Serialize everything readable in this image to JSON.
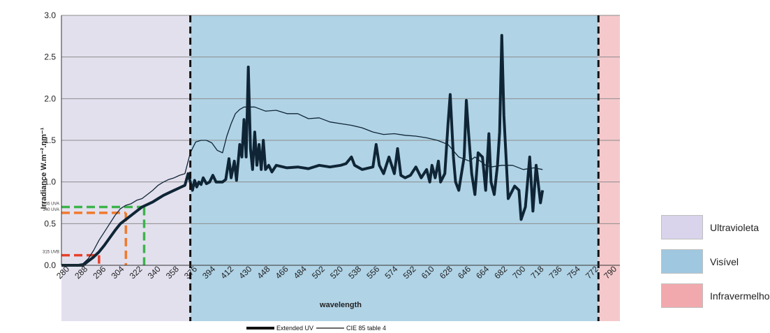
{
  "chart_data": {
    "type": "line",
    "title": "",
    "xlabel": "wavelength",
    "ylabel": "Irradiance W.m⁻².nm⁻¹",
    "ylim": [
      0,
      3
    ],
    "y_ticks": [
      "0.0",
      "0.5",
      "1.0",
      "1.5",
      "2.0",
      "2.5",
      "3.0"
    ],
    "x_tick_labels": [
      "280",
      "288",
      "296",
      "304",
      "322",
      "340",
      "358",
      "376",
      "394",
      "412",
      "430",
      "448",
      "466",
      "484",
      "502",
      "520",
      "538",
      "556",
      "574",
      "592",
      "610",
      "628",
      "646",
      "664",
      "682",
      "700",
      "718",
      "736",
      "754",
      "772",
      "790"
    ],
    "x_range": [
      280,
      800
    ],
    "grid": true,
    "regions": [
      {
        "name": "Ultravioleta",
        "from": 280,
        "to": 400,
        "color": "#e3e0ee"
      },
      {
        "name": "Visível",
        "from": 400,
        "to": 780,
        "color": "#b0d3e6"
      },
      {
        "name": "Infravermelho",
        "from": 780,
        "to": 800,
        "color": "#f5c9cc"
      }
    ],
    "dividers": [
      400,
      780
    ],
    "markers": [
      {
        "label": "315 UVB",
        "y": 0.12,
        "x_end": 315,
        "color": "#e8402a"
      },
      {
        "label": "340 UVA",
        "y": 0.63,
        "x_end": 340,
        "color": "#f07a2c"
      },
      {
        "label": "355 UVA",
        "y": 0.7,
        "x_end": 357,
        "color": "#3cb44a"
      }
    ],
    "series": [
      {
        "name": "Extended UV",
        "color": "#0f2535",
        "points": [
          [
            280,
            0
          ],
          [
            300,
            0
          ],
          [
            305,
            0.05
          ],
          [
            310,
            0.1
          ],
          [
            315,
            0.16
          ],
          [
            320,
            0.24
          ],
          [
            325,
            0.33
          ],
          [
            330,
            0.42
          ],
          [
            335,
            0.5
          ],
          [
            340,
            0.55
          ],
          [
            345,
            0.6
          ],
          [
            350,
            0.65
          ],
          [
            355,
            0.7
          ],
          [
            360,
            0.73
          ],
          [
            365,
            0.76
          ],
          [
            370,
            0.8
          ],
          [
            375,
            0.84
          ],
          [
            380,
            0.87
          ],
          [
            385,
            0.9
          ],
          [
            390,
            0.93
          ],
          [
            395,
            0.96
          ],
          [
            398,
            1.1
          ],
          [
            400,
            1.0
          ],
          [
            402,
            0.9
          ],
          [
            404,
            1.02
          ],
          [
            406,
            0.94
          ],
          [
            408,
            1.0
          ],
          [
            410,
            0.97
          ],
          [
            412,
            1.05
          ],
          [
            415,
            0.98
          ],
          [
            418,
            1.0
          ],
          [
            421,
            1.08
          ],
          [
            424,
            1.0
          ],
          [
            427,
            1.0
          ],
          [
            430,
            1.0
          ],
          [
            433,
            1.03
          ],
          [
            436,
            1.28
          ],
          [
            438,
            1.05
          ],
          [
            441,
            1.25
          ],
          [
            443,
            1.02
          ],
          [
            446,
            1.45
          ],
          [
            448,
            1.3
          ],
          [
            450,
            1.75
          ],
          [
            452,
            1.3
          ],
          [
            454,
            2.38
          ],
          [
            456,
            1.4
          ],
          [
            458,
            1.15
          ],
          [
            460,
            1.6
          ],
          [
            462,
            1.2
          ],
          [
            464,
            1.45
          ],
          [
            466,
            1.15
          ],
          [
            468,
            1.5
          ],
          [
            470,
            1.15
          ],
          [
            473,
            1.2
          ],
          [
            476,
            1.12
          ],
          [
            480,
            1.2
          ],
          [
            490,
            1.17
          ],
          [
            500,
            1.18
          ],
          [
            510,
            1.16
          ],
          [
            520,
            1.2
          ],
          [
            530,
            1.18
          ],
          [
            540,
            1.2
          ],
          [
            545,
            1.22
          ],
          [
            550,
            1.3
          ],
          [
            553,
            1.2
          ],
          [
            560,
            1.15
          ],
          [
            570,
            1.18
          ],
          [
            573,
            1.45
          ],
          [
            576,
            1.2
          ],
          [
            580,
            1.1
          ],
          [
            585,
            1.3
          ],
          [
            590,
            1.1
          ],
          [
            593,
            1.4
          ],
          [
            596,
            1.08
          ],
          [
            600,
            1.05
          ],
          [
            605,
            1.08
          ],
          [
            610,
            1.18
          ],
          [
            615,
            1.05
          ],
          [
            620,
            1.15
          ],
          [
            623,
            1.0
          ],
          [
            625,
            1.2
          ],
          [
            628,
            1.05
          ],
          [
            631,
            1.25
          ],
          [
            633,
            1.0
          ],
          [
            637,
            1.1
          ],
          [
            640,
            1.7
          ],
          [
            642,
            2.05
          ],
          [
            645,
            1.3
          ],
          [
            647,
            1.0
          ],
          [
            650,
            0.9
          ],
          [
            655,
            1.3
          ],
          [
            657,
            1.98
          ],
          [
            659,
            1.6
          ],
          [
            662,
            1.1
          ],
          [
            665,
            0.85
          ],
          [
            668,
            1.35
          ],
          [
            672,
            1.3
          ],
          [
            675,
            0.9
          ],
          [
            678,
            1.58
          ],
          [
            680,
            1.0
          ],
          [
            683,
            0.85
          ],
          [
            686,
            1.2
          ],
          [
            688,
            1.6
          ],
          [
            690,
            2.76
          ],
          [
            692,
            1.8
          ],
          [
            694,
            1.3
          ],
          [
            696,
            0.8
          ],
          [
            698,
            0.85
          ],
          [
            702,
            0.95
          ],
          [
            706,
            0.9
          ],
          [
            708,
            0.55
          ],
          [
            712,
            0.7
          ],
          [
            716,
            1.3
          ],
          [
            719,
            0.65
          ],
          [
            722,
            1.2
          ],
          [
            726,
            0.75
          ],
          [
            728,
            0.9
          ]
        ]
      },
      {
        "name": "CIE 85 table 4",
        "color": "#0f2535",
        "points": [
          [
            280,
            0
          ],
          [
            290,
            0
          ],
          [
            300,
            0.02
          ],
          [
            305,
            0.08
          ],
          [
            310,
            0.18
          ],
          [
            315,
            0.3
          ],
          [
            320,
            0.4
          ],
          [
            325,
            0.5
          ],
          [
            330,
            0.6
          ],
          [
            335,
            0.68
          ],
          [
            340,
            0.72
          ],
          [
            345,
            0.74
          ],
          [
            350,
            0.78
          ],
          [
            355,
            0.8
          ],
          [
            360,
            0.85
          ],
          [
            365,
            0.9
          ],
          [
            370,
            0.96
          ],
          [
            375,
            1.0
          ],
          [
            380,
            1.03
          ],
          [
            385,
            1.05
          ],
          [
            390,
            1.08
          ],
          [
            395,
            1.1
          ],
          [
            400,
            1.35
          ],
          [
            405,
            1.48
          ],
          [
            410,
            1.5
          ],
          [
            415,
            1.5
          ],
          [
            420,
            1.47
          ],
          [
            425,
            1.38
          ],
          [
            430,
            1.35
          ],
          [
            434,
            1.55
          ],
          [
            438,
            1.7
          ],
          [
            442,
            1.82
          ],
          [
            446,
            1.87
          ],
          [
            450,
            1.9
          ],
          [
            460,
            1.9
          ],
          [
            470,
            1.85
          ],
          [
            480,
            1.86
          ],
          [
            490,
            1.82
          ],
          [
            500,
            1.82
          ],
          [
            510,
            1.76
          ],
          [
            520,
            1.77
          ],
          [
            530,
            1.72
          ],
          [
            540,
            1.7
          ],
          [
            550,
            1.68
          ],
          [
            560,
            1.65
          ],
          [
            570,
            1.6
          ],
          [
            580,
            1.57
          ],
          [
            590,
            1.58
          ],
          [
            600,
            1.56
          ],
          [
            610,
            1.55
          ],
          [
            620,
            1.53
          ],
          [
            630,
            1.5
          ],
          [
            640,
            1.45
          ],
          [
            650,
            1.3
          ],
          [
            660,
            1.25
          ],
          [
            665,
            1.3
          ],
          [
            670,
            1.25
          ],
          [
            675,
            1.2
          ],
          [
            680,
            1.18
          ],
          [
            690,
            1.2
          ],
          [
            700,
            1.2
          ],
          [
            710,
            1.15
          ],
          [
            720,
            1.17
          ],
          [
            728,
            1.15
          ]
        ]
      }
    ],
    "legend": [
      {
        "label": "Extended UV",
        "style": "thick"
      },
      {
        "label": "CIE 85 table 4",
        "style": "thin"
      }
    ]
  },
  "region_legend": [
    {
      "label": "Ultravioleta",
      "color": "#d9d3ec"
    },
    {
      "label": "Visível",
      "color": "#9fc8e0"
    },
    {
      "label": "Infravermelho",
      "color": "#f2a9ad"
    }
  ]
}
